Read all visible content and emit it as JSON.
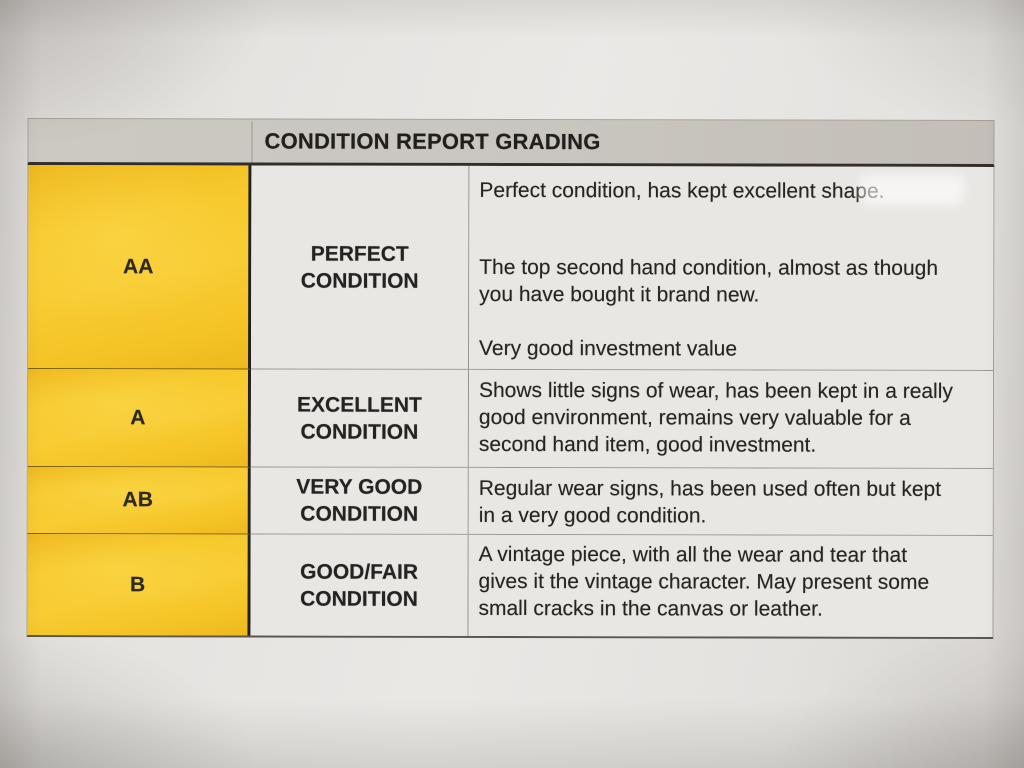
{
  "document": {
    "title": "CONDITION REPORT GRADING",
    "rows": [
      {
        "grade": "AA",
        "label": "PERFECT CONDITION",
        "paragraphs": [
          "Perfect condition, has kept excellent shape.",
          "The top second hand condition, almost as though you have bought it brand new.",
          "Very good investment value"
        ]
      },
      {
        "grade": "A",
        "label": "EXCELLENT CONDITION",
        "paragraphs": [
          "Shows little signs of wear, has been kept in a really good environment, remains very valuable for a second hand item, good investment."
        ]
      },
      {
        "grade": "AB",
        "label": "VERY GOOD CONDITION",
        "paragraphs": [
          "Regular wear signs, has been used often but kept in a very good condition."
        ]
      },
      {
        "grade": "B",
        "label": "GOOD/FAIR CONDITION",
        "paragraphs": [
          "A vintage piece, with all the wear and tear that gives it the vintage character. May present some small cracks in the canvas or leather."
        ]
      }
    ],
    "colors": {
      "grade_column": "#f6c72a",
      "header_bar": "#c8c4be",
      "paper": "#e7e5e2",
      "ink": "#2a2926"
    }
  }
}
